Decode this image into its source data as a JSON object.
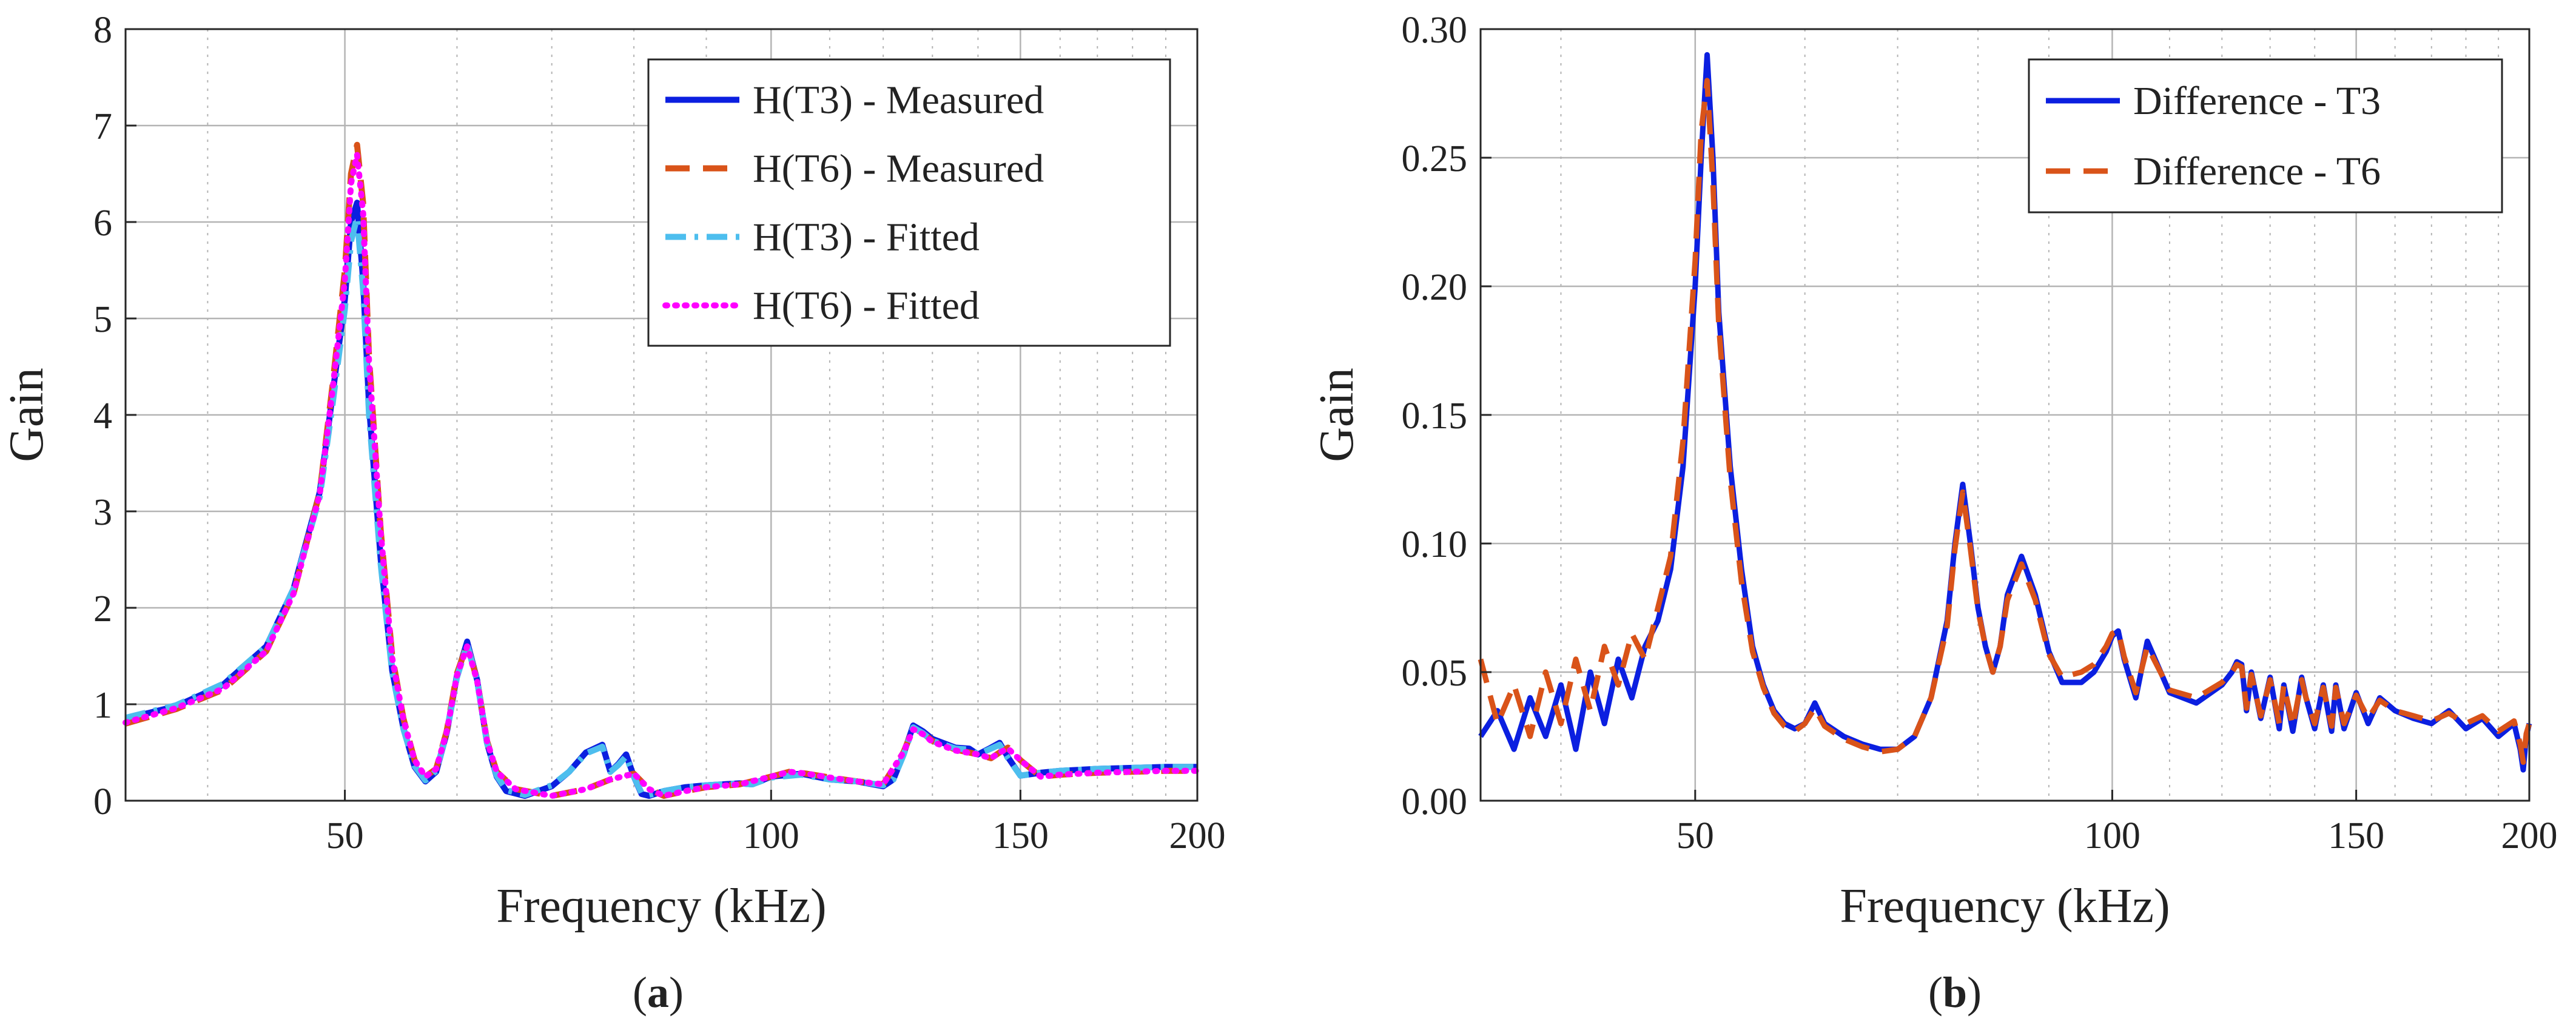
{
  "colors": {
    "t3_measured": "#0b1fe0",
    "t6_measured": "#d95319",
    "t3_fitted": "#4dbeee",
    "t6_fitted": "#ff00ff",
    "diff_t3": "#0b1fe0",
    "diff_t6": "#d95319",
    "grid": "#b4b4b4",
    "axis": "#262626"
  },
  "captions": [
    {
      "open": "(",
      "letter": "a",
      "close": ")"
    },
    {
      "open": "(",
      "letter": "b",
      "close": ")"
    }
  ],
  "chart_data": [
    {
      "type": "line",
      "id": "a",
      "xscale": "log",
      "xlabel": "Frequency (kHz)",
      "ylabel": "Gain",
      "xlim": [
        35,
        200
      ],
      "ylim": [
        0,
        8
      ],
      "xticks": [
        50,
        100,
        150,
        200
      ],
      "xtick_labels": [
        "50",
        "100",
        "150",
        "200"
      ],
      "yticks": [
        0,
        1,
        2,
        3,
        4,
        5,
        6,
        7,
        8
      ],
      "ytick_labels": [
        "0",
        "1",
        "2",
        "3",
        "4",
        "5",
        "6",
        "7",
        "8"
      ],
      "grid": true,
      "legend_position": "top-right",
      "series": [
        {
          "name": "H(T3) - Measured",
          "color_key": "t3_measured",
          "style": "solid",
          "x": [
            35,
            38,
            41,
            44,
            46,
            48,
            49,
            50,
            50.5,
            51,
            51.5,
            52,
            53,
            54,
            55,
            56,
            57,
            58,
            59,
            60,
            61,
            62,
            63,
            64,
            65,
            67,
            70,
            72,
            74,
            76,
            77,
            78,
            79,
            80,
            81,
            82,
            84,
            87,
            90,
            95,
            97,
            100,
            105,
            110,
            115,
            120,
            122,
            124,
            126,
            128,
            130,
            135,
            138,
            140,
            143,
            145,
            147,
            150,
            155,
            160,
            170,
            180,
            190,
            200
          ],
          "y": [
            0.85,
            0.98,
            1.2,
            1.6,
            2.2,
            3.2,
            4.2,
            5.2,
            6.0,
            6.2,
            5.4,
            4.1,
            2.5,
            1.35,
            0.75,
            0.35,
            0.2,
            0.3,
            0.7,
            1.3,
            1.65,
            1.25,
            0.6,
            0.25,
            0.1,
            0.05,
            0.15,
            0.3,
            0.5,
            0.58,
            0.3,
            0.38,
            0.48,
            0.25,
            0.07,
            0.05,
            0.1,
            0.14,
            0.16,
            0.18,
            0.17,
            0.25,
            0.28,
            0.22,
            0.2,
            0.15,
            0.22,
            0.48,
            0.78,
            0.72,
            0.64,
            0.55,
            0.54,
            0.48,
            0.55,
            0.6,
            0.45,
            0.26,
            0.29,
            0.31,
            0.33,
            0.34,
            0.35,
            0.35
          ]
        },
        {
          "name": "H(T6) - Measured",
          "color_key": "t6_measured",
          "style": "dashed",
          "x": [
            35,
            38,
            41,
            44,
            46,
            48,
            49,
            50,
            50.5,
            51,
            51.5,
            52,
            53,
            54,
            55,
            56,
            57,
            58,
            59,
            60,
            61,
            62,
            63,
            64,
            66,
            70,
            74,
            77,
            80,
            82,
            84,
            87,
            90,
            95,
            100,
            103,
            106,
            110,
            115,
            120,
            124,
            126,
            128,
            130,
            135,
            140,
            143,
            145,
            147,
            150,
            155,
            160,
            170,
            180,
            190,
            200
          ],
          "y": [
            0.8,
            0.95,
            1.15,
            1.55,
            2.15,
            3.2,
            4.3,
            5.5,
            6.5,
            6.8,
            6.2,
            4.6,
            2.8,
            1.5,
            0.85,
            0.42,
            0.25,
            0.33,
            0.72,
            1.32,
            1.62,
            1.25,
            0.62,
            0.3,
            0.12,
            0.05,
            0.12,
            0.22,
            0.28,
            0.12,
            0.05,
            0.1,
            0.14,
            0.17,
            0.25,
            0.3,
            0.28,
            0.24,
            0.2,
            0.17,
            0.5,
            0.75,
            0.7,
            0.62,
            0.53,
            0.48,
            0.44,
            0.5,
            0.55,
            0.42,
            0.25,
            0.27,
            0.29,
            0.3,
            0.31,
            0.31
          ]
        },
        {
          "name": "H(T3) - Fitted",
          "color_key": "t3_fitted",
          "style": "dashdot",
          "x": [
            35,
            38,
            41,
            44,
            46,
            48,
            49,
            50,
            50.5,
            51,
            51.5,
            52,
            53,
            54,
            55,
            56,
            57,
            58,
            59,
            60,
            61,
            62,
            63,
            64,
            65,
            67,
            70,
            72,
            74,
            76,
            77,
            78,
            79,
            80,
            81,
            82,
            84,
            87,
            90,
            95,
            97,
            100,
            105,
            110,
            115,
            120,
            122,
            124,
            126,
            128,
            130,
            135,
            138,
            140,
            143,
            145,
            147,
            150,
            155,
            160,
            170,
            180,
            190,
            200
          ],
          "y": [
            0.86,
            0.99,
            1.21,
            1.6,
            2.2,
            3.15,
            4.1,
            5.1,
            5.8,
            6.05,
            5.3,
            4.0,
            2.45,
            1.33,
            0.74,
            0.36,
            0.21,
            0.31,
            0.7,
            1.28,
            1.62,
            1.24,
            0.6,
            0.26,
            0.11,
            0.06,
            0.16,
            0.3,
            0.49,
            0.56,
            0.3,
            0.37,
            0.46,
            0.25,
            0.08,
            0.06,
            0.1,
            0.14,
            0.16,
            0.18,
            0.17,
            0.24,
            0.27,
            0.22,
            0.2,
            0.16,
            0.22,
            0.47,
            0.76,
            0.7,
            0.62,
            0.54,
            0.53,
            0.48,
            0.54,
            0.58,
            0.44,
            0.26,
            0.29,
            0.31,
            0.33,
            0.34,
            0.35,
            0.35
          ]
        },
        {
          "name": "H(T6) - Fitted",
          "color_key": "t6_fitted",
          "style": "dotted",
          "x": [
            35,
            38,
            41,
            44,
            46,
            48,
            49,
            50,
            50.5,
            51,
            51.5,
            52,
            53,
            54,
            55,
            56,
            57,
            58,
            59,
            60,
            61,
            62,
            63,
            64,
            66,
            70,
            74,
            77,
            80,
            82,
            84,
            87,
            90,
            95,
            100,
            103,
            106,
            110,
            115,
            120,
            124,
            126,
            128,
            130,
            135,
            140,
            143,
            145,
            147,
            150,
            155,
            160,
            170,
            180,
            190,
            200
          ],
          "y": [
            0.81,
            0.96,
            1.16,
            1.55,
            2.15,
            3.18,
            4.25,
            5.4,
            6.4,
            6.7,
            6.1,
            4.55,
            2.78,
            1.48,
            0.84,
            0.42,
            0.25,
            0.33,
            0.71,
            1.3,
            1.6,
            1.24,
            0.62,
            0.3,
            0.12,
            0.05,
            0.12,
            0.22,
            0.28,
            0.12,
            0.05,
            0.1,
            0.14,
            0.17,
            0.25,
            0.3,
            0.28,
            0.24,
            0.2,
            0.17,
            0.5,
            0.74,
            0.69,
            0.61,
            0.52,
            0.48,
            0.44,
            0.5,
            0.54,
            0.42,
            0.25,
            0.27,
            0.29,
            0.3,
            0.31,
            0.31
          ]
        }
      ]
    },
    {
      "type": "line",
      "id": "b",
      "xscale": "log",
      "xlabel": "Frequency (kHz)",
      "ylabel": "Gain",
      "xlim": [
        35,
        200
      ],
      "ylim": [
        0,
        0.3
      ],
      "xticks": [
        50,
        100,
        150,
        200
      ],
      "xtick_labels": [
        "50",
        "100",
        "150",
        "200"
      ],
      "yticks": [
        0,
        0.05,
        0.1,
        0.15,
        0.2,
        0.25,
        0.3
      ],
      "ytick_labels": [
        "0.00",
        "0.05",
        "0.10",
        "0.15",
        "0.20",
        "0.25",
        "0.30"
      ],
      "grid": true,
      "legend_position": "top-right",
      "series": [
        {
          "name": "Difference - T3",
          "color_key": "diff_t3",
          "style": "solid",
          "x": [
            35,
            36,
            37,
            38,
            39,
            40,
            41,
            42,
            43,
            44,
            45,
            46,
            47,
            48,
            49,
            50,
            50.5,
            51,
            51.5,
            52,
            53,
            54,
            55,
            56,
            57,
            58,
            59,
            60,
            61,
            62,
            64,
            66,
            68,
            70,
            72,
            74,
            76,
            77,
            78,
            79,
            80,
            81,
            82,
            83,
            84,
            86,
            88,
            90,
            92,
            95,
            97,
            99,
            100,
            101,
            102,
            104,
            106,
            110,
            115,
            120,
            122,
            123,
            124,
            125,
            126,
            128,
            130,
            132,
            133,
            135,
            137,
            138,
            140,
            142,
            144,
            145,
            147,
            150,
            153,
            156,
            160,
            165,
            170,
            175,
            180,
            185,
            190,
            195,
            197,
            198,
            199,
            200
          ],
          "y": [
            0.025,
            0.035,
            0.02,
            0.04,
            0.025,
            0.045,
            0.02,
            0.05,
            0.03,
            0.055,
            0.04,
            0.06,
            0.07,
            0.09,
            0.13,
            0.2,
            0.25,
            0.29,
            0.25,
            0.19,
            0.13,
            0.09,
            0.06,
            0.045,
            0.035,
            0.03,
            0.028,
            0.03,
            0.038,
            0.03,
            0.025,
            0.022,
            0.02,
            0.02,
            0.025,
            0.04,
            0.07,
            0.1,
            0.123,
            0.1,
            0.075,
            0.06,
            0.05,
            0.06,
            0.08,
            0.095,
            0.08,
            0.058,
            0.046,
            0.046,
            0.05,
            0.058,
            0.064,
            0.066,
            0.055,
            0.04,
            0.062,
            0.042,
            0.038,
            0.045,
            0.05,
            0.054,
            0.053,
            0.035,
            0.05,
            0.032,
            0.048,
            0.028,
            0.045,
            0.027,
            0.048,
            0.04,
            0.028,
            0.045,
            0.027,
            0.045,
            0.028,
            0.042,
            0.03,
            0.04,
            0.035,
            0.032,
            0.03,
            0.035,
            0.028,
            0.032,
            0.025,
            0.03,
            0.02,
            0.012,
            0.025,
            0.03
          ]
        },
        {
          "name": "Difference - T6",
          "color_key": "diff_t6",
          "style": "dashed",
          "x": [
            35,
            36,
            37,
            38,
            39,
            40,
            41,
            42,
            43,
            44,
            45,
            46,
            47,
            48,
            49,
            50,
            50.5,
            51,
            51.5,
            52,
            53,
            54,
            55,
            56,
            57,
            58,
            59,
            60,
            61,
            62,
            64,
            66,
            68,
            70,
            72,
            74,
            76,
            77,
            78,
            79,
            80,
            81,
            82,
            83,
            84,
            86,
            88,
            90,
            92,
            95,
            97,
            99,
            100,
            101,
            102,
            104,
            106,
            110,
            115,
            120,
            122,
            123,
            124,
            125,
            126,
            128,
            130,
            132,
            133,
            135,
            137,
            138,
            140,
            142,
            144,
            145,
            147,
            150,
            153,
            156,
            160,
            165,
            170,
            175,
            180,
            185,
            190,
            195,
            197,
            198,
            199,
            200
          ],
          "y": [
            0.055,
            0.03,
            0.045,
            0.025,
            0.05,
            0.03,
            0.055,
            0.035,
            0.06,
            0.045,
            0.065,
            0.055,
            0.075,
            0.095,
            0.14,
            0.21,
            0.26,
            0.28,
            0.24,
            0.185,
            0.125,
            0.085,
            0.058,
            0.044,
            0.034,
            0.029,
            0.027,
            0.03,
            0.036,
            0.029,
            0.024,
            0.021,
            0.019,
            0.02,
            0.025,
            0.04,
            0.068,
            0.098,
            0.12,
            0.098,
            0.074,
            0.06,
            0.05,
            0.06,
            0.078,
            0.092,
            0.078,
            0.057,
            0.048,
            0.05,
            0.053,
            0.06,
            0.065,
            0.066,
            0.056,
            0.042,
            0.06,
            0.043,
            0.04,
            0.046,
            0.05,
            0.053,
            0.052,
            0.036,
            0.049,
            0.033,
            0.047,
            0.03,
            0.045,
            0.029,
            0.047,
            0.04,
            0.03,
            0.044,
            0.029,
            0.044,
            0.03,
            0.041,
            0.032,
            0.039,
            0.035,
            0.033,
            0.031,
            0.034,
            0.03,
            0.033,
            0.027,
            0.031,
            0.022,
            0.015,
            0.026,
            0.03
          ]
        }
      ]
    }
  ]
}
